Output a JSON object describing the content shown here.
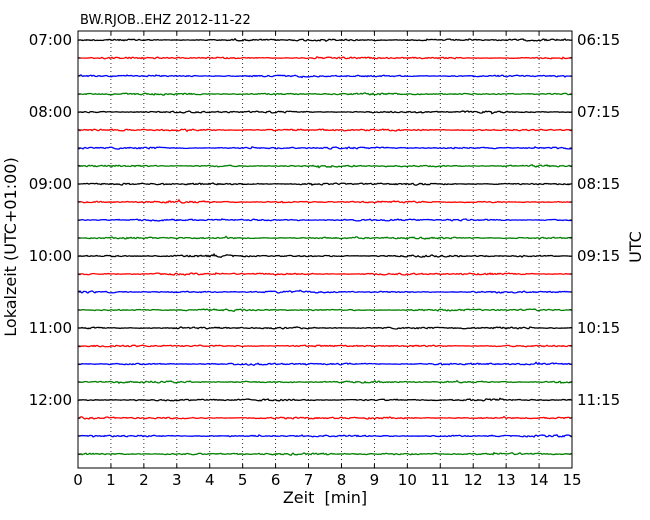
{
  "chart_data": {
    "type": "line",
    "title": "BW.RJOB..EHZ 2012-11-22",
    "xlabel": "Zeit  [min]",
    "ylabel_left": "Lokalzeit (UTC+01:00)",
    "ylabel_right": "UTC",
    "xlim": [
      0,
      15
    ],
    "x_ticks": [
      "0",
      "1",
      "2",
      "3",
      "4",
      "5",
      "6",
      "7",
      "8",
      "9",
      "10",
      "11",
      "12",
      "13",
      "14",
      "15"
    ],
    "left_tick_labels": [
      "07:00",
      "08:00",
      "09:00",
      "10:00",
      "11:00",
      "12:00"
    ],
    "right_tick_labels": [
      "06:15",
      "07:15",
      "08:15",
      "09:15",
      "10:15",
      "11:15"
    ],
    "rows_per_hour": 4,
    "row_count": 24,
    "row_minutes": 15,
    "trace_colors": [
      "#000000",
      "#ff0000",
      "#0000ff",
      "#008000"
    ],
    "grid": "vertical-dotted"
  }
}
